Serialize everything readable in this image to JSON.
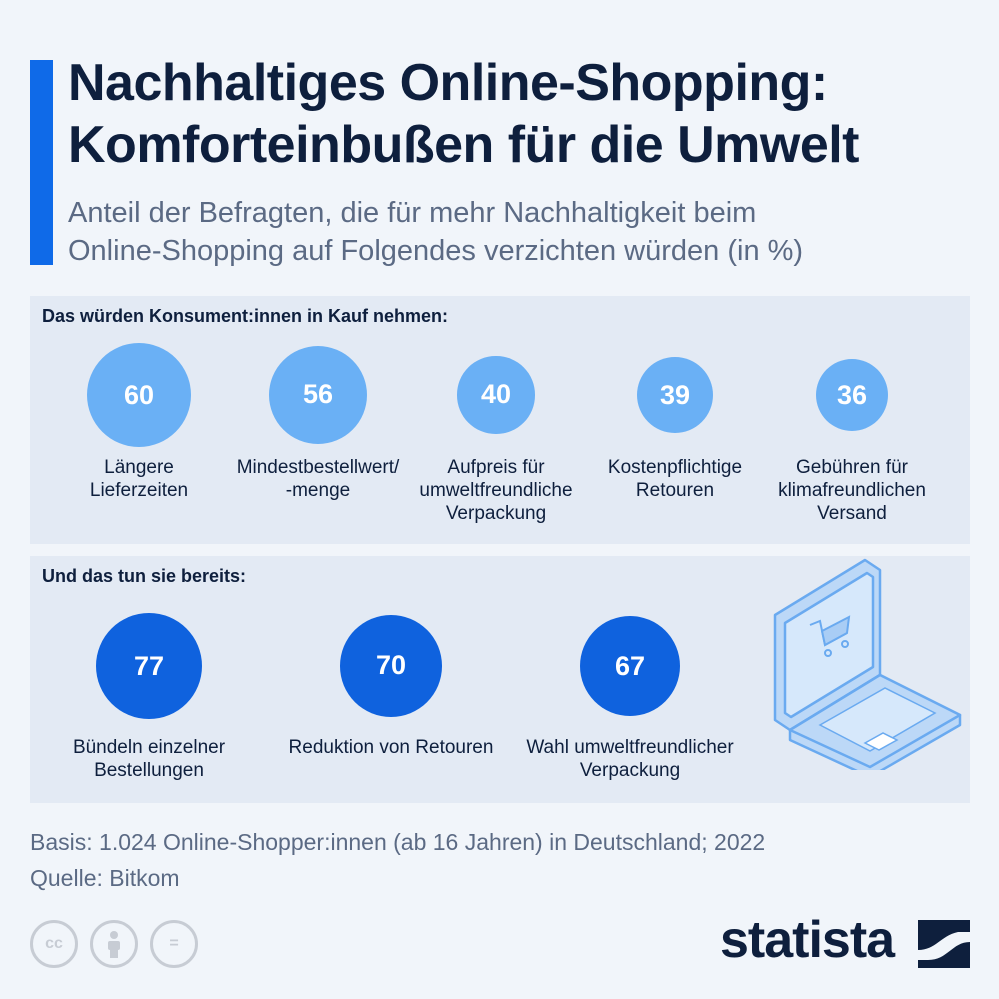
{
  "header": {
    "title_line1": "Nachhaltiges Online-Shopping:",
    "title_line2": "Komforteinbußen für die Umwelt",
    "subtitle_line1": "Anteil der Befragten, die für mehr Nachhaltigkeit beim",
    "subtitle_line2": "Online-Shopping auf Folgendes verzichten würden (in %)"
  },
  "colors": {
    "accent": "#0f6ae8",
    "light_bubble": "#6ab0f5",
    "dark_bubble": "#0f62de",
    "panel": "#e3eaf4",
    "background": "#f1f5fa"
  },
  "chart_data": [
    {
      "type": "bubble",
      "title": "Das würden Konsument:innen in Kauf nehmen:",
      "categories": [
        [
          "Längere",
          "Lieferzeiten"
        ],
        [
          "Mindestbestellwert/",
          "-menge"
        ],
        [
          "Aufpreis für",
          "umweltfreundliche",
          "Verpackung"
        ],
        [
          "Kostenpflichtige",
          "Retouren"
        ],
        [
          "Gebühren für",
          "klimafreundlichen",
          "Versand"
        ]
      ],
      "values": [
        60,
        56,
        40,
        39,
        36
      ],
      "value_labels": [
        "60",
        "56",
        "40",
        "39",
        "36"
      ],
      "color": "#6ab0f5"
    },
    {
      "type": "bubble",
      "title": "Und das tun sie bereits:",
      "categories": [
        [
          "Bündeln einzelner",
          "Bestellungen"
        ],
        [
          "Reduktion von Retouren"
        ],
        [
          "Wahl umweltfreundlicher",
          "Verpackung"
        ]
      ],
      "values": [
        77,
        70,
        67
      ],
      "value_labels": [
        "77",
        "70",
        "67"
      ],
      "color": "#0f62de"
    }
  ],
  "footer": {
    "basis": "Basis: 1.024 Online-Shopper:innen (ab 16 Jahren) in Deutschland; 2022",
    "source": "Quelle: Bitkom"
  },
  "license_icons": [
    "cc-icon",
    "by-icon",
    "nd-icon"
  ],
  "license_text": {
    "cc": "cc",
    "nd": "="
  },
  "logo": {
    "text": "statista"
  }
}
